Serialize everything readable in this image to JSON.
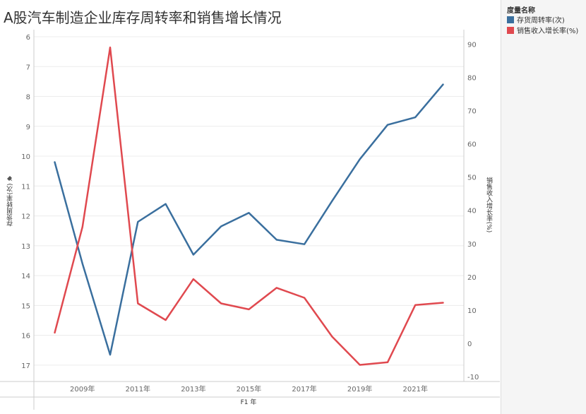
{
  "chart_data": {
    "type": "line",
    "title": "A股汽车制造企业库存周转率和销售增长情况",
    "xlabel": "F1 年",
    "ylabel_left": "存货周转率(次)",
    "ylabel_right": "销售收入增长率(%)",
    "x": [
      2008,
      2009,
      2010,
      2011,
      2012,
      2013,
      2014,
      2015,
      2016,
      2017,
      2018,
      2019,
      2020,
      2021,
      2022
    ],
    "x_tick_labels": [
      "2009年",
      "2011年",
      "2013年",
      "2015年",
      "2017年",
      "2019年",
      "2021年"
    ],
    "x_tick_values": [
      2009,
      2011,
      2013,
      2015,
      2017,
      2019,
      2021
    ],
    "y_left_lim": [
      6,
      17.5
    ],
    "y_left_reversed": true,
    "y_left_ticks": [
      6,
      7,
      8,
      9,
      10,
      11,
      12,
      13,
      14,
      15,
      16,
      17
    ],
    "y_right_lim": [
      -10,
      92
    ],
    "y_right_ticks": [
      -10,
      0,
      10,
      20,
      30,
      40,
      50,
      60,
      70,
      80,
      90
    ],
    "grid": true,
    "legend_position": "right",
    "series": [
      {
        "name": "存货周转率(次)",
        "axis": "left",
        "color": "#3a6f9e",
        "values": [
          10.2,
          13.6,
          16.65,
          12.2,
          11.6,
          13.3,
          12.35,
          11.9,
          12.8,
          12.95,
          11.5,
          10.1,
          8.95,
          8.7,
          7.6
        ]
      },
      {
        "name": "销售收入增长率(%)",
        "axis": "right",
        "color": "#e0494f",
        "values": [
          3.2,
          35,
          89,
          12,
          7,
          19.3,
          12,
          10.2,
          16.7,
          13.7,
          2,
          -6.5,
          -5.7,
          11.5,
          12.2
        ]
      }
    ]
  },
  "legend": {
    "title": "度量名称",
    "items": [
      {
        "label": "存货周转率(次)",
        "color": "#3a6f9e"
      },
      {
        "label": "销售收入增长率(%)",
        "color": "#e0494f"
      }
    ]
  }
}
